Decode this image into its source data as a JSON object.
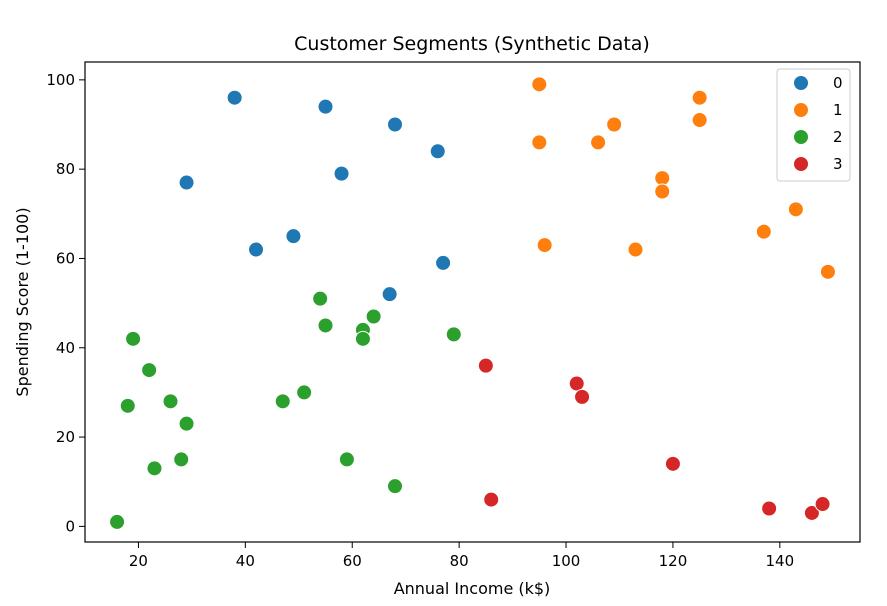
{
  "chart_data": {
    "type": "scatter",
    "title": "Customer Segments (Synthetic Data)",
    "xlabel": "Annual Income (k$)",
    "ylabel": "Spending Score (1-100)",
    "xlim": [
      10,
      155
    ],
    "ylim": [
      -3.5,
      104
    ],
    "xticks": [
      20,
      40,
      60,
      80,
      100,
      120,
      140
    ],
    "yticks": [
      0,
      20,
      40,
      60,
      80,
      100
    ],
    "grid": false,
    "legend_position": "top-right",
    "series": [
      {
        "name": "0",
        "color": "#1f77b4",
        "points": [
          [
            38,
            96
          ],
          [
            55,
            94
          ],
          [
            68,
            90
          ],
          [
            76,
            84
          ],
          [
            29,
            77
          ],
          [
            58,
            79
          ],
          [
            42,
            62
          ],
          [
            49,
            65
          ],
          [
            77,
            59
          ],
          [
            67,
            52
          ]
        ]
      },
      {
        "name": "1",
        "color": "#ff7f0e",
        "points": [
          [
            95,
            99
          ],
          [
            125,
            96
          ],
          [
            125,
            91
          ],
          [
            109,
            90
          ],
          [
            95,
            86
          ],
          [
            106,
            86
          ],
          [
            118,
            78
          ],
          [
            118,
            75
          ],
          [
            96,
            63
          ],
          [
            113,
            62
          ],
          [
            137,
            66
          ],
          [
            143,
            71
          ],
          [
            149,
            57
          ]
        ]
      },
      {
        "name": "2",
        "color": "#2ca02c",
        "points": [
          [
            54,
            51
          ],
          [
            55,
            45
          ],
          [
            64,
            47
          ],
          [
            62,
            44
          ],
          [
            62,
            42
          ],
          [
            79,
            43
          ],
          [
            19,
            42
          ],
          [
            22,
            35
          ],
          [
            18,
            27
          ],
          [
            26,
            28
          ],
          [
            29,
            23
          ],
          [
            47,
            28
          ],
          [
            51,
            30
          ],
          [
            23,
            13
          ],
          [
            28,
            15
          ],
          [
            59,
            15
          ],
          [
            68,
            9
          ],
          [
            16,
            1
          ]
        ]
      },
      {
        "name": "3",
        "color": "#d62728",
        "points": [
          [
            85,
            36
          ],
          [
            102,
            32
          ],
          [
            103,
            29
          ],
          [
            120,
            14
          ],
          [
            86,
            6
          ],
          [
            138,
            4
          ],
          [
            146,
            3
          ],
          [
            148,
            5
          ]
        ]
      }
    ]
  }
}
